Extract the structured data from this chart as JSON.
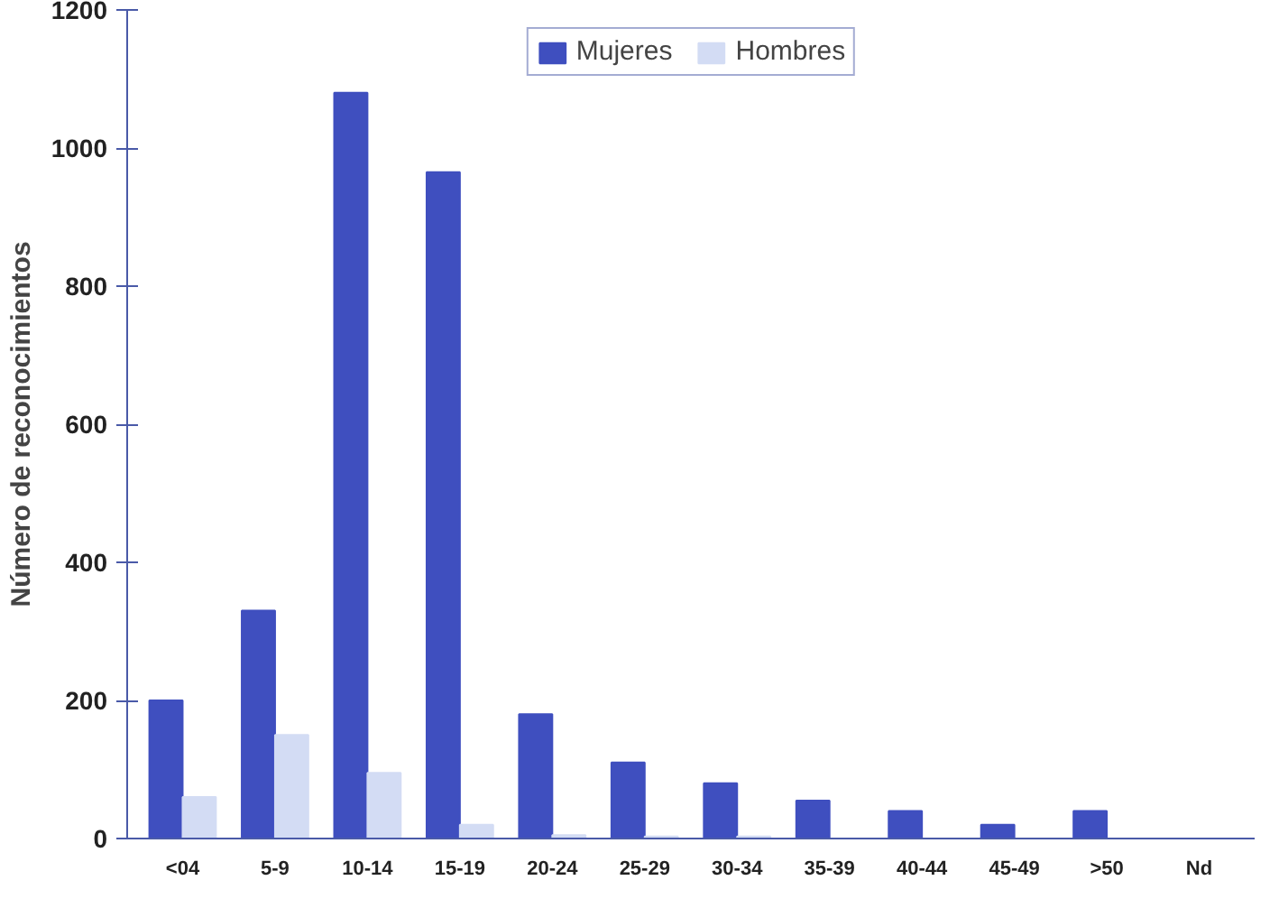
{
  "chart_data": {
    "type": "bar",
    "ylabel": "Número de reconocimientos",
    "categories": [
      "<04",
      "5-9",
      "10-14",
      "15-19",
      "20-24",
      "25-29",
      "30-34",
      "35-39",
      "40-44",
      "45-49",
      ">50",
      "Nd"
    ],
    "series": [
      {
        "name": "Mujeres",
        "color": "#3f4fbf",
        "values": [
          200,
          330,
          1080,
          965,
          180,
          110,
          80,
          55,
          40,
          20,
          40,
          0
        ]
      },
      {
        "name": "Hombres",
        "color": "#d3dcf4",
        "values": [
          60,
          150,
          95,
          20,
          5,
          3,
          3,
          0,
          0,
          0,
          0,
          0
        ]
      }
    ],
    "ylim": [
      0,
      1200
    ],
    "yticks": [
      0,
      200,
      400,
      600,
      800,
      1000,
      1200
    ],
    "grid": false,
    "legend": "top"
  }
}
